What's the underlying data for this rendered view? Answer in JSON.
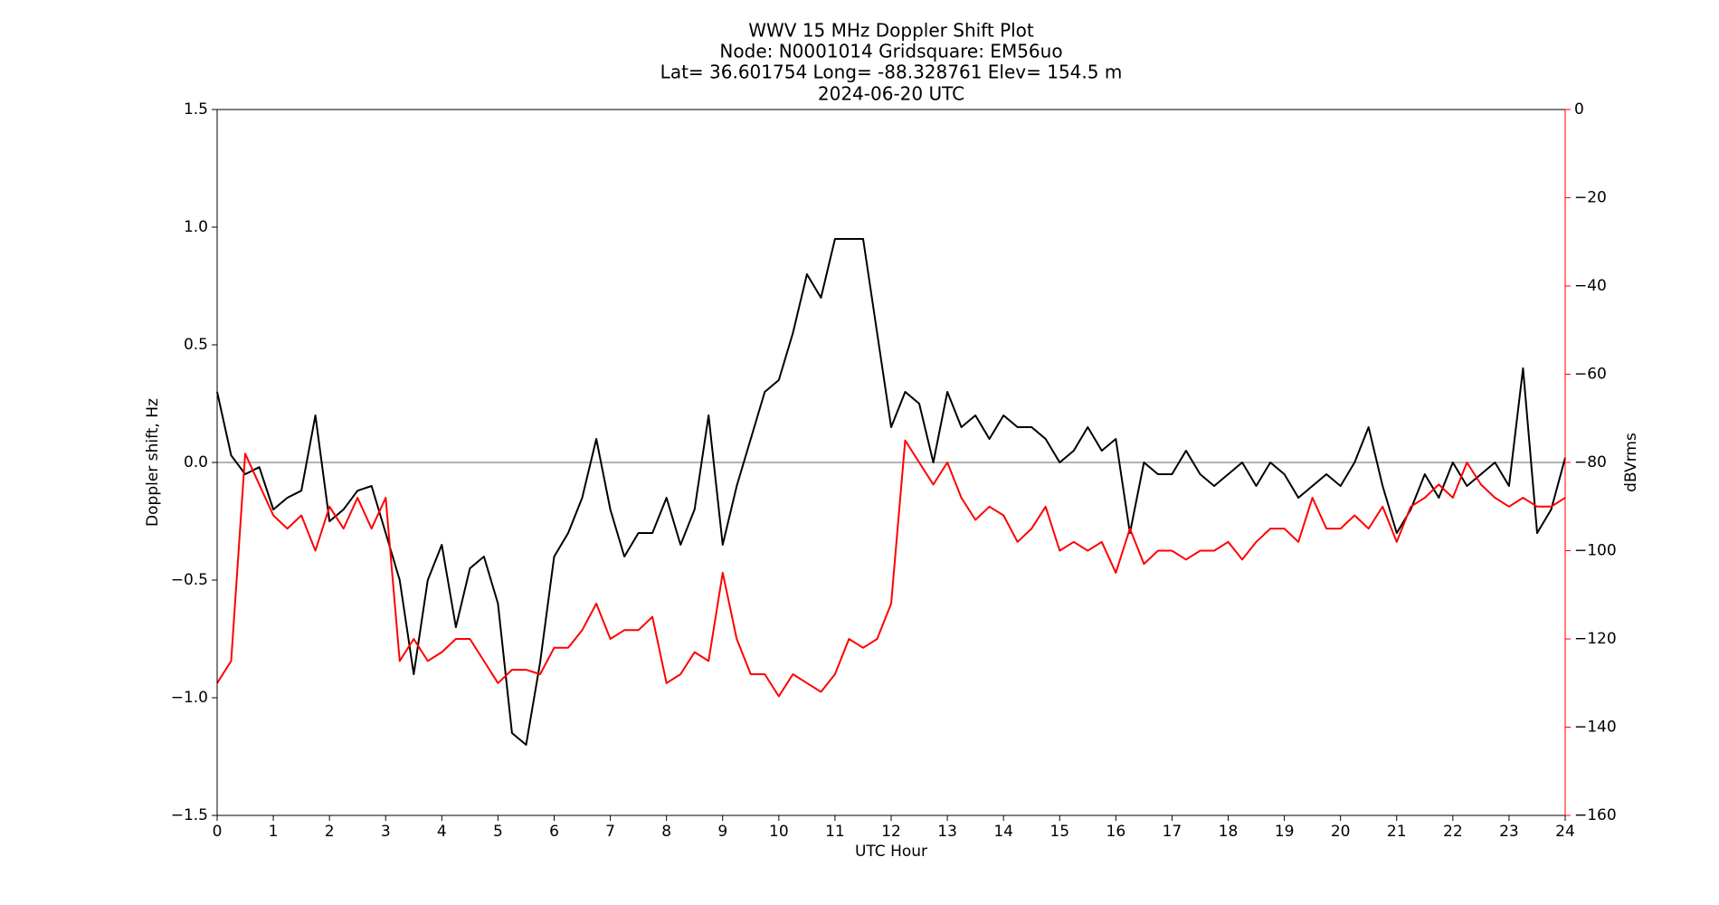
{
  "chart_data": {
    "type": "line",
    "title": [
      "WWV 15 MHz Doppler Shift Plot",
      "Node:  N0001014     Gridsquare:  EM56uo",
      "Lat= 36.601754    Long= -88.328761    Elev= 154.5 m",
      "2024-06-20  UTC"
    ],
    "xlabel": "UTC Hour",
    "ylabel": "Doppler shift, Hz",
    "y2label": "dBVrms",
    "y2color": "#ff0000",
    "xlim": [
      0,
      24
    ],
    "xticks": [
      0,
      1,
      2,
      3,
      4,
      5,
      6,
      7,
      8,
      9,
      10,
      11,
      12,
      13,
      14,
      15,
      16,
      17,
      18,
      19,
      20,
      21,
      22,
      23,
      24
    ],
    "ylim": [
      -1.5,
      1.5
    ],
    "yticks": [
      {
        "value": -1.5,
        "label": "−1.5"
      },
      {
        "value": -1.0,
        "label": "−1.0"
      },
      {
        "value": -0.5,
        "label": "−0.5"
      },
      {
        "value": 0,
        "label": "0.0"
      },
      {
        "value": 0.5,
        "label": "0.5"
      },
      {
        "value": 1.0,
        "label": "1.0"
      },
      {
        "value": 1.5,
        "label": "1.5"
      }
    ],
    "y2lim": [
      -160,
      0
    ],
    "y2ticks": [
      {
        "value": -160,
        "label": "−160"
      },
      {
        "value": -140,
        "label": "−140"
      },
      {
        "value": -120,
        "label": "−120"
      },
      {
        "value": -100,
        "label": "−100"
      },
      {
        "value": -80,
        "label": "−80"
      },
      {
        "value": -60,
        "label": "−60"
      },
      {
        "value": -40,
        "label": "−40"
      },
      {
        "value": -20,
        "label": "−20"
      },
      0
    ],
    "hline": 0,
    "x": [
      0,
      0.25,
      0.5,
      0.75,
      1,
      1.25,
      1.5,
      1.75,
      2,
      2.25,
      2.5,
      2.75,
      3,
      3.25,
      3.5,
      3.75,
      4,
      4.25,
      4.5,
      4.75,
      5,
      5.25,
      5.5,
      5.75,
      6,
      6.25,
      6.5,
      6.75,
      7,
      7.25,
      7.5,
      7.75,
      8,
      8.25,
      8.5,
      8.75,
      9,
      9.25,
      9.5,
      9.75,
      10,
      10.25,
      10.5,
      10.75,
      11,
      11.25,
      11.5,
      11.75,
      12,
      12.25,
      12.5,
      12.75,
      13,
      13.25,
      13.5,
      13.75,
      14,
      14.25,
      14.5,
      14.75,
      15,
      15.25,
      15.5,
      15.75,
      16,
      16.25,
      16.5,
      16.75,
      17,
      17.25,
      17.5,
      17.75,
      18,
      18.25,
      18.5,
      18.75,
      19,
      19.25,
      19.5,
      19.75,
      20,
      20.25,
      20.5,
      20.75,
      21,
      21.25,
      21.5,
      21.75,
      22,
      22.25,
      22.5,
      22.75,
      23,
      23.25,
      23.5,
      23.75,
      24
    ],
    "series": [
      {
        "color": "#000000",
        "axis": "y",
        "values": [
          0.3,
          0.03,
          -0.05,
          -0.02,
          -0.2,
          -0.15,
          -0.12,
          0.2,
          -0.25,
          -0.2,
          -0.12,
          -0.1,
          -0.3,
          -0.5,
          -0.9,
          -0.5,
          -0.35,
          -0.7,
          -0.45,
          -0.4,
          -0.6,
          -1.15,
          -1.2,
          -0.85,
          -0.4,
          -0.3,
          -0.15,
          0.1,
          -0.2,
          -0.4,
          -0.3,
          -0.3,
          -0.15,
          -0.35,
          -0.2,
          0.2,
          -0.35,
          -0.1,
          0.1,
          0.3,
          0.35,
          0.55,
          0.8,
          0.7,
          0.95,
          0.95,
          0.95,
          0.55,
          0.15,
          0.3,
          0.25,
          0.0,
          0.3,
          0.15,
          0.2,
          0.1,
          0.2,
          0.15,
          0.15,
          0.1,
          0.0,
          0.05,
          0.15,
          0.05,
          0.1,
          -0.3,
          0.0,
          -0.05,
          -0.05,
          0.05,
          -0.05,
          -0.1,
          -0.05,
          0.0,
          -0.1,
          0.0,
          -0.05,
          -0.15,
          -0.1,
          -0.05,
          -0.1,
          0.0,
          0.15,
          -0.1,
          -0.3,
          -0.2,
          -0.05,
          -0.15,
          0.0,
          -0.1,
          -0.05,
          0.0,
          -0.1,
          0.4,
          -0.3,
          -0.2,
          0.02
        ]
      },
      {
        "color": "#ff0000",
        "axis": "y2",
        "values": [
          -130,
          -125,
          -78,
          -85,
          -92,
          -95,
          -92,
          -100,
          -90,
          -95,
          -88,
          -95,
          -88,
          -125,
          -120,
          -125,
          -123,
          -120,
          -120,
          -125,
          -130,
          -127,
          -127,
          -128,
          -122,
          -122,
          -118,
          -112,
          -120,
          -118,
          -118,
          -115,
          -130,
          -128,
          -123,
          -125,
          -105,
          -120,
          -128,
          -128,
          -133,
          -128,
          -130,
          -132,
          -128,
          -120,
          -122,
          -120,
          -112,
          -75,
          -80,
          -85,
          -80,
          -88,
          -93,
          -90,
          -92,
          -98,
          -95,
          -90,
          -100,
          -98,
          -100,
          -98,
          -105,
          -95,
          -103,
          -100,
          -100,
          -102,
          -100,
          -100,
          -98,
          -102,
          -98,
          -95,
          -95,
          -98,
          -88,
          -95,
          -95,
          -92,
          -95,
          -90,
          -98,
          -90,
          -88,
          -85,
          -88,
          -80,
          -85,
          -88,
          -90,
          -88,
          -90,
          -90,
          -88
        ]
      }
    ]
  }
}
